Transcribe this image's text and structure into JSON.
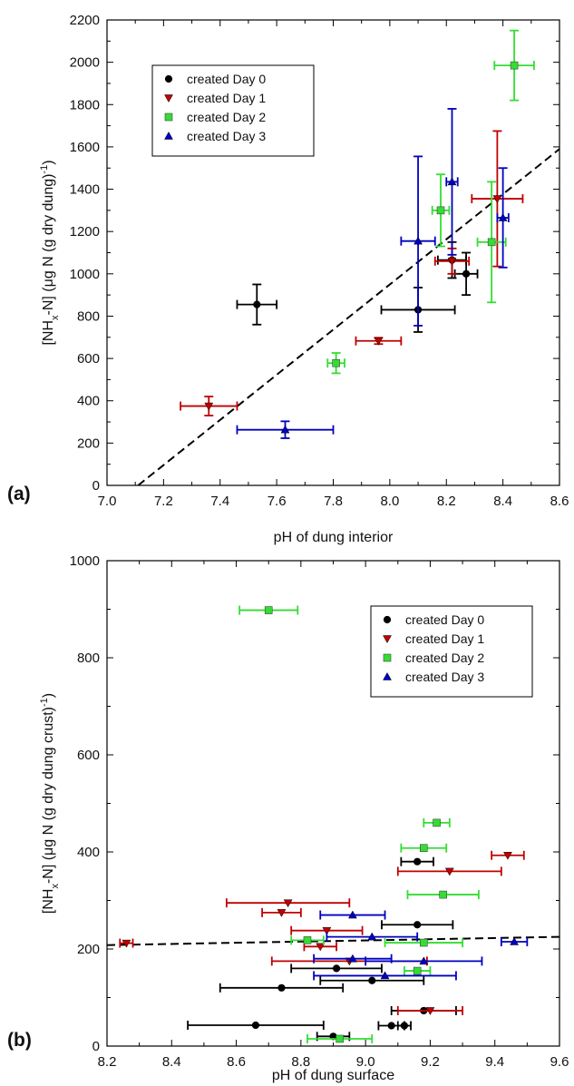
{
  "colors": {
    "created Day 0": "#000000",
    "created Day 1": "#c00000",
    "created Day 2": "#33dd33",
    "created Day 3": "#0000c0",
    "fit_line": "#000000"
  },
  "chart_data": [
    {
      "type": "scatter",
      "panel_label": "(a)",
      "xlabel": "pH of dung interior",
      "ylabel": "[NH",
      "ylabel_sub": "x",
      "ylabel_rest": "-N] (μg N (g dry dung)",
      "ylabel_sup": "-1",
      "ylabel_end": ")",
      "xlim": [
        7.0,
        8.6
      ],
      "ylim": [
        0,
        2200
      ],
      "xticks": [
        7.0,
        7.2,
        7.4,
        7.6,
        7.8,
        8.0,
        8.2,
        8.4,
        8.6
      ],
      "xtick_labels": [
        "7.0",
        "7.2",
        "7.4",
        "7.6",
        "7.8",
        "8.0",
        "8.2",
        "8.4",
        "8.6"
      ],
      "yticks": [
        0,
        200,
        400,
        600,
        800,
        1000,
        1200,
        1400,
        1600,
        1800,
        2000,
        2200
      ],
      "ytick_labels": [
        "0",
        "200",
        "400",
        "600",
        "800",
        "1000",
        "1200",
        "1400",
        "1600",
        "1800",
        "2000",
        "2200"
      ],
      "legend_position": "upper-left",
      "fit_line": {
        "style": "dashed",
        "x": [
          7.11,
          8.6
        ],
        "y": [
          0,
          1590
        ]
      },
      "series": [
        {
          "name": "created Day 0",
          "marker": "circle",
          "points": [
            {
              "x": 7.53,
              "y": 855,
              "xerr": 0.07,
              "yerr": 95
            },
            {
              "x": 8.1,
              "y": 830,
              "xerr": 0.13,
              "yerr": 105
            },
            {
              "x": 8.27,
              "y": 1000,
              "xerr": 0.04,
              "yerr": 100
            },
            {
              "x": 8.22,
              "y": 1065,
              "xerr": 0.05,
              "yerr": 85
            }
          ]
        },
        {
          "name": "created Day 1",
          "marker": "triangle-down",
          "points": [
            {
              "x": 7.36,
              "y": 375,
              "xerr": 0.1,
              "yerr": 45
            },
            {
              "x": 7.96,
              "y": 683,
              "xerr": 0.08,
              "yerr": 15
            },
            {
              "x": 8.22,
              "y": 1060,
              "xerr": 0.06,
              "yerr": 60
            },
            {
              "x": 8.38,
              "y": 1355,
              "xerr": 0.09,
              "yerr": 320
            }
          ]
        },
        {
          "name": "created Day 2",
          "marker": "square",
          "points": [
            {
              "x": 7.81,
              "y": 578,
              "xerr": 0.03,
              "yerr": 48
            },
            {
              "x": 8.18,
              "y": 1300,
              "xerr": 0.03,
              "yerr": 170
            },
            {
              "x": 8.36,
              "y": 1150,
              "xerr": 0.05,
              "yerr": 285
            },
            {
              "x": 8.44,
              "y": 1985,
              "xerr": 0.07,
              "yerr": 165
            }
          ]
        },
        {
          "name": "created Day 3",
          "marker": "triangle-up",
          "points": [
            {
              "x": 7.63,
              "y": 263,
              "xerr": 0.17,
              "yerr": 40
            },
            {
              "x": 8.1,
              "y": 1155,
              "xerr": 0.06,
              "yerr": 400
            },
            {
              "x": 8.22,
              "y": 1435,
              "xerr": 0.02,
              "yerr": 345
            },
            {
              "x": 8.4,
              "y": 1265,
              "xerr": 0.02,
              "yerr": 235
            }
          ]
        }
      ]
    },
    {
      "type": "scatter",
      "panel_label": "(b)",
      "xlabel": "pH of dung surface",
      "ylabel": "[NH",
      "ylabel_sub": "x",
      "ylabel_rest": "-N] (μg N (g dry dung crust)",
      "ylabel_sup": "-1",
      "ylabel_end": ")",
      "xlim": [
        8.2,
        9.6
      ],
      "ylim": [
        0,
        1000
      ],
      "xticks": [
        8.2,
        8.4,
        8.6,
        8.8,
        9.0,
        9.2,
        9.4,
        9.6
      ],
      "xtick_labels": [
        "8.2",
        "8.4",
        "8.6",
        "8.8",
        "9.0",
        "9.2",
        "9.4",
        "9.6"
      ],
      "yticks": [
        0,
        200,
        400,
        600,
        800,
        1000
      ],
      "ytick_labels": [
        "0",
        "200",
        "400",
        "600",
        "800",
        "1000"
      ],
      "legend_position": "upper-right",
      "fit_line": {
        "style": "dashed",
        "x": [
          8.2,
          9.6
        ],
        "y": [
          208,
          225
        ]
      },
      "series": [
        {
          "name": "created Day 0",
          "marker": "circle",
          "points": [
            {
              "x": 8.66,
              "y": 43,
              "xerr": 0.21,
              "yerr": 0
            },
            {
              "x": 8.74,
              "y": 120,
              "xerr": 0.19,
              "yerr": 0
            },
            {
              "x": 8.91,
              "y": 160,
              "xerr": 0.14,
              "yerr": 0
            },
            {
              "x": 9.02,
              "y": 135,
              "xerr": 0.16,
              "yerr": 0
            },
            {
              "x": 8.9,
              "y": 20,
              "xerr": 0.05,
              "yerr": 0
            },
            {
              "x": 9.08,
              "y": 42,
              "xerr": 0.04,
              "yerr": 0
            },
            {
              "x": 9.12,
              "y": 42,
              "xerr": 0.02,
              "yerr": 0
            },
            {
              "x": 9.18,
              "y": 73,
              "xerr": 0.1,
              "yerr": 0
            },
            {
              "x": 9.16,
              "y": 250,
              "xerr": 0.11,
              "yerr": 0
            },
            {
              "x": 9.16,
              "y": 380,
              "xerr": 0.05,
              "yerr": 0
            }
          ]
        },
        {
          "name": "created Day 1",
          "marker": "triangle-down",
          "points": [
            {
              "x": 8.26,
              "y": 212,
              "xerr": 0.02,
              "yerr": 0
            },
            {
              "x": 8.76,
              "y": 295,
              "xerr": 0.19,
              "yerr": 0
            },
            {
              "x": 8.74,
              "y": 275,
              "xerr": 0.06,
              "yerr": 0
            },
            {
              "x": 8.88,
              "y": 238,
              "xerr": 0.11,
              "yerr": 0
            },
            {
              "x": 8.86,
              "y": 205,
              "xerr": 0.05,
              "yerr": 0
            },
            {
              "x": 8.95,
              "y": 175,
              "xerr": 0.24,
              "yerr": 0
            },
            {
              "x": 9.26,
              "y": 360,
              "xerr": 0.16,
              "yerr": 0
            },
            {
              "x": 9.44,
              "y": 393,
              "xerr": 0.05,
              "yerr": 0
            },
            {
              "x": 9.2,
              "y": 73,
              "xerr": 0.1,
              "yerr": 0
            }
          ]
        },
        {
          "name": "created Day 2",
          "marker": "square",
          "points": [
            {
              "x": 8.7,
              "y": 898,
              "xerr": 0.09,
              "yerr": 0
            },
            {
              "x": 8.82,
              "y": 218,
              "xerr": 0.05,
              "yerr": 0
            },
            {
              "x": 9.22,
              "y": 460,
              "xerr": 0.04,
              "yerr": 0
            },
            {
              "x": 9.18,
              "y": 408,
              "xerr": 0.07,
              "yerr": 0
            },
            {
              "x": 9.24,
              "y": 312,
              "xerr": 0.11,
              "yerr": 0
            },
            {
              "x": 9.18,
              "y": 213,
              "xerr": 0.12,
              "yerr": 0
            },
            {
              "x": 9.16,
              "y": 155,
              "xerr": 0.04,
              "yerr": 0
            },
            {
              "x": 8.92,
              "y": 15,
              "xerr": 0.1,
              "yerr": 0
            }
          ]
        },
        {
          "name": "created Day 3",
          "marker": "triangle-up",
          "points": [
            {
              "x": 8.96,
              "y": 270,
              "xerr": 0.1,
              "yerr": 0
            },
            {
              "x": 9.02,
              "y": 225,
              "xerr": 0.14,
              "yerr": 0
            },
            {
              "x": 8.96,
              "y": 180,
              "xerr": 0.12,
              "yerr": 0
            },
            {
              "x": 9.18,
              "y": 175,
              "xerr": 0.18,
              "yerr": 0
            },
            {
              "x": 9.06,
              "y": 145,
              "xerr": 0.22,
              "yerr": 0
            },
            {
              "x": 9.46,
              "y": 215,
              "xerr": 0.04,
              "yerr": 0
            }
          ]
        }
      ]
    }
  ]
}
